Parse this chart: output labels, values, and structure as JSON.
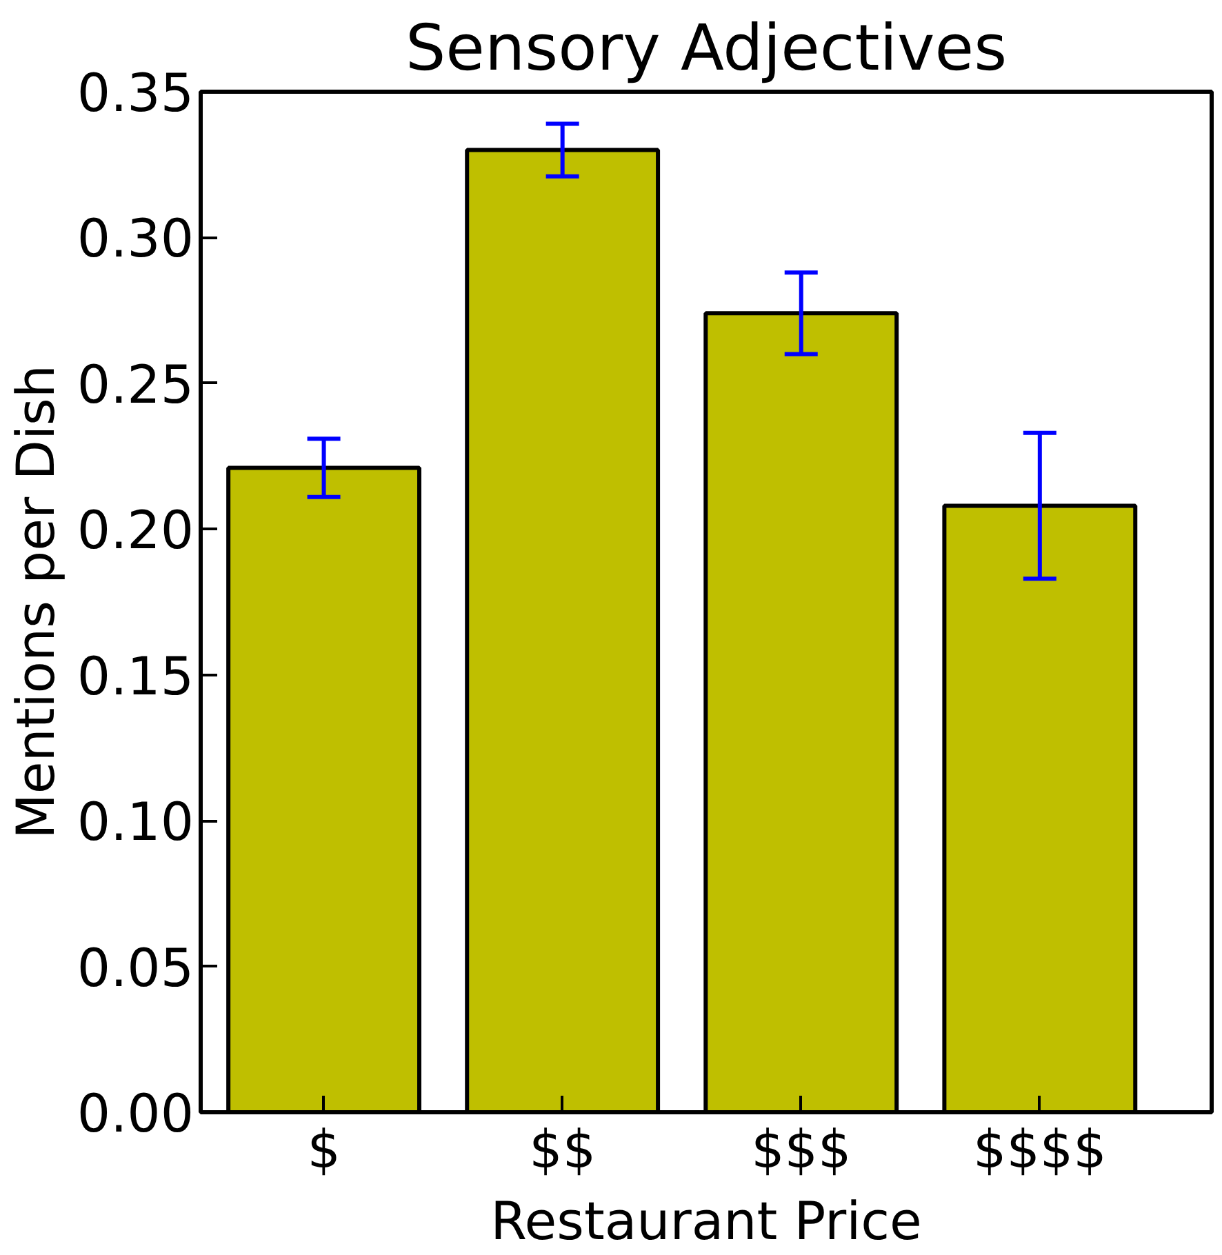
{
  "chart_data": {
    "type": "bar",
    "title": "Sensory Adjectives",
    "xlabel": "Restaurant Price",
    "ylabel": "Mentions per Dish",
    "categories": [
      "$",
      "$$",
      "$$$",
      "$$$$"
    ],
    "values": [
      0.221,
      0.33,
      0.274,
      0.208
    ],
    "errors": [
      0.01,
      0.009,
      0.014,
      0.025
    ],
    "color": "#bfbf00",
    "ylim": [
      0,
      0.35
    ],
    "yticks": [
      {
        "value": 0,
        "label": "0.00"
      },
      {
        "value": 0.05,
        "label": "0.05"
      },
      {
        "value": 0.1,
        "label": "0.10"
      },
      {
        "value": 0.15,
        "label": "0.15"
      },
      {
        "value": 0.2,
        "label": "0.20"
      },
      {
        "value": 0.25,
        "label": "0.25"
      },
      {
        "value": 0.3,
        "label": "0.30"
      },
      {
        "value": 0.35,
        "label": "0.35"
      }
    ],
    "grid": false
  }
}
